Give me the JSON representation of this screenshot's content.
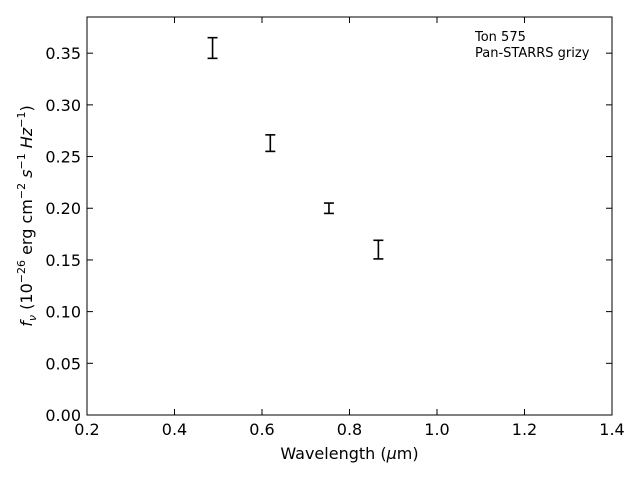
{
  "chart_data": {
    "type": "scatter",
    "title": "",
    "xlabel_prefix": "Wavelength (",
    "xlabel_unit_symbol": "μ",
    "xlabel_suffix": "m)",
    "ylabel_symbol": "f",
    "ylabel_subscript": "ν",
    "ylabel_text": " (10",
    "ylabel_exp": "−26",
    "ylabel_rest": " erg cm",
    "xlim": [
      0.2,
      1.4
    ],
    "ylim": [
      0.0,
      0.385
    ],
    "xticks": [
      0.2,
      0.4,
      0.6,
      0.8,
      1.0,
      1.2,
      1.4
    ],
    "xtick_labels": [
      "0.2",
      "0.4",
      "0.6",
      "0.8",
      "1.0",
      "1.2",
      "1.4"
    ],
    "yticks": [
      0.0,
      0.05,
      0.1,
      0.15,
      0.2,
      0.25,
      0.3,
      0.35
    ],
    "ytick_labels": [
      "0.00",
      "0.05",
      "0.10",
      "0.15",
      "0.20",
      "0.25",
      "0.30",
      "0.35"
    ],
    "annotation": [
      "Ton 575",
      "Pan-STARRS grizy"
    ],
    "annotation_position": "top-right",
    "grid": false,
    "series": [
      {
        "x": [
          0.487,
          0.619,
          0.753,
          0.866
        ],
        "y": [
          0.355,
          0.263,
          0.2,
          0.16
        ],
        "yerr_low": [
          0.01,
          0.008,
          0.005,
          0.009
        ],
        "yerr_high": [
          0.01,
          0.008,
          0.005,
          0.009
        ],
        "color": "#000000"
      }
    ]
  }
}
